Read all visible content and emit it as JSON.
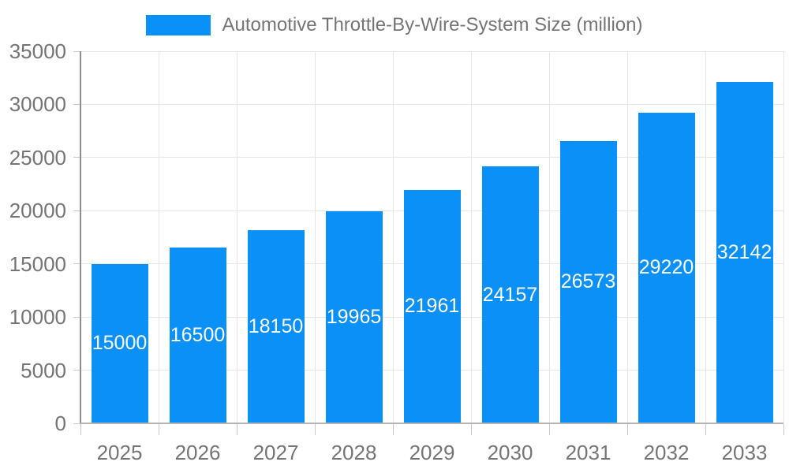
{
  "legend": {
    "label": "Automotive Throttle-By-Wire-System Size (million)"
  },
  "chart_data": {
    "type": "bar",
    "title": "Automotive Throttle-By-Wire-System Size (million)",
    "categories": [
      "2025",
      "2026",
      "2027",
      "2028",
      "2029",
      "2030",
      "2031",
      "2032",
      "2033"
    ],
    "values": [
      15000,
      16500,
      18150,
      19965,
      21961,
      24157,
      26573,
      29220,
      32142
    ],
    "xlabel": "",
    "ylabel": "",
    "ylim": [
      0,
      35000
    ],
    "ytick_interval": 5000,
    "yticks": [
      0,
      5000,
      10000,
      15000,
      20000,
      25000,
      30000,
      35000
    ],
    "grid": true,
    "legend_position": "top"
  },
  "colors": {
    "bar": "#0b90f8",
    "text": "#757575",
    "grid": "#e6e6e6",
    "axis_y": "#8f8f8f",
    "axis_x": "#b3b3b3",
    "tick": "#c9c9c9",
    "value_label": "#ffffff",
    "background": "#ffffff"
  }
}
